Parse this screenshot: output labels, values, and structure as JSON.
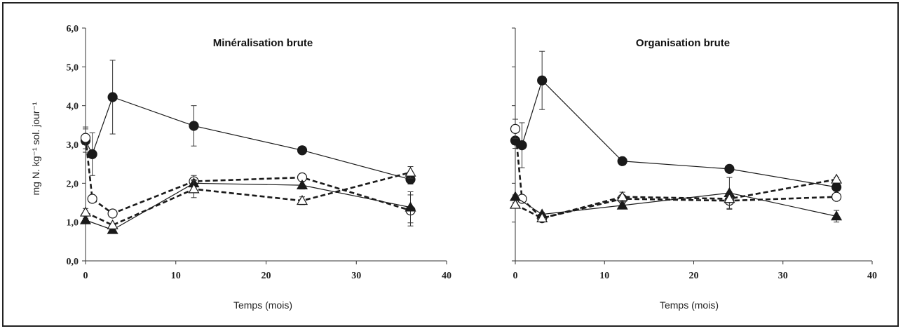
{
  "chart_data": {
    "type": "line",
    "ylabel": "mg N. kg⁻¹ sol. jour⁻¹",
    "yticks": [
      "0,0",
      "1,0",
      "2,0",
      "3,0",
      "4,0",
      "5,0",
      "6,0"
    ],
    "xticks": [
      "0",
      "10",
      "20",
      "30",
      "40"
    ],
    "ylim": [
      0,
      6
    ],
    "xlim": [
      0,
      40
    ],
    "marker_colors": {
      "filled": "#1a1a1a",
      "open": "#ffffff"
    },
    "panels": [
      {
        "title": "Minéralisation brute",
        "xlabel": "Temps (mois)",
        "series": [
          {
            "marker": "filled-circle",
            "dashed": false,
            "x": [
              0,
              0.75,
              3,
              12,
              24,
              36
            ],
            "y": [
              3.1,
              2.75,
              4.22,
              3.48,
              2.85,
              2.1
            ],
            "err": [
              0.3,
              0.55,
              0.95,
              0.52,
              0.1,
              0.12
            ]
          },
          {
            "marker": "open-circle",
            "dashed": true,
            "x": [
              0,
              0.75,
              3,
              12,
              24,
              36
            ],
            "y": [
              3.17,
              1.6,
              1.22,
              2.05,
              2.15,
              1.3
            ],
            "err": [
              0.28,
              0.1,
              0.06,
              0.15,
              0.1,
              0.4
            ]
          },
          {
            "marker": "filled-triangle",
            "dashed": false,
            "x": [
              0,
              3,
              12,
              24,
              36
            ],
            "y": [
              1.05,
              0.8,
              2.0,
              1.95,
              1.38
            ],
            "err": [
              0.05,
              0.05,
              0.1,
              0.1,
              0.4
            ]
          },
          {
            "marker": "open-triangle",
            "dashed": true,
            "x": [
              0,
              3,
              12,
              24,
              36
            ],
            "y": [
              1.25,
              0.92,
              1.85,
              1.55,
              2.28
            ],
            "err": [
              0.1,
              0.05,
              0.22,
              0.1,
              0.15
            ]
          }
        ]
      },
      {
        "title": "Organisation brute",
        "xlabel": "Temps (mois)",
        "series": [
          {
            "marker": "filled-circle",
            "dashed": false,
            "x": [
              0,
              0.75,
              3,
              12,
              24,
              36
            ],
            "y": [
              3.1,
              2.98,
              4.65,
              2.57,
              2.37,
              1.9
            ],
            "err": [
              0.2,
              0.58,
              0.75,
              0.05,
              0.05,
              0.05
            ]
          },
          {
            "marker": "open-circle",
            "dashed": true,
            "x": [
              0,
              0.75,
              3,
              12,
              24,
              36
            ],
            "y": [
              3.4,
              1.6,
              1.1,
              1.6,
              1.55,
              1.65
            ],
            "err": [
              0.25,
              0.05,
              0.05,
              0.05,
              0.22,
              0.05
            ]
          },
          {
            "marker": "filled-triangle",
            "dashed": false,
            "x": [
              0,
              3,
              12,
              24,
              36
            ],
            "y": [
              1.65,
              1.2,
              1.43,
              1.75,
              1.15
            ],
            "err": [
              0.05,
              0.05,
              0.05,
              0.4,
              0.15
            ]
          },
          {
            "marker": "open-triangle",
            "dashed": true,
            "x": [
              0,
              3,
              12,
              24,
              36
            ],
            "y": [
              1.45,
              1.1,
              1.65,
              1.6,
              2.1
            ],
            "err": [
              0.05,
              0.05,
              0.12,
              0.1,
              0.05
            ]
          }
        ]
      }
    ]
  }
}
